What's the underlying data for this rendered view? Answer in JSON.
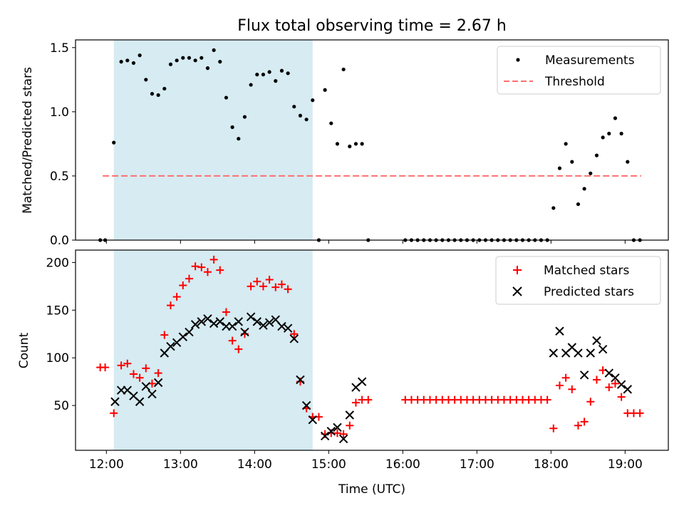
{
  "figure": {
    "title": "Flux total observing time = 2.67 h",
    "xlabel": "Time (UTC)"
  },
  "colors": {
    "shade": "#add8e6",
    "measurement": "#000000",
    "threshold": "#ff6f6f",
    "matched": "#ff0000",
    "predicted": "#000000"
  },
  "chart_data": [
    {
      "type": "scatter",
      "ylabel": "Matched/Predicted stars",
      "xlim": [
        "11:35",
        "19:35"
      ],
      "ylim": [
        0,
        1.56
      ],
      "yticks": [
        0.0,
        0.5,
        1.0,
        1.5
      ],
      "ytick_labels": [
        "0.0",
        "0.5",
        "1.0",
        "1.5"
      ],
      "xticks": [
        "12:00",
        "13:00",
        "14:00",
        "15:00",
        "16:00",
        "17:00",
        "18:00",
        "19:00"
      ],
      "shaded_span": [
        "12:06",
        "14:47"
      ],
      "legend": {
        "position": "upper right",
        "entries": [
          "Measurements",
          "Threshold"
        ]
      },
      "threshold": {
        "name": "Threshold",
        "value": 0.5,
        "x_range": [
          "11:57",
          "19:13"
        ]
      },
      "series": [
        {
          "name": "Measurements",
          "marker": "dot",
          "points": [
            [
              "11:55",
              0
            ],
            [
              "11:59",
              0
            ],
            [
              "12:06",
              0.76
            ],
            [
              "12:12",
              1.39
            ],
            [
              "12:17",
              1.4
            ],
            [
              "12:22",
              1.38
            ],
            [
              "12:27",
              1.44
            ],
            [
              "12:32",
              1.25
            ],
            [
              "12:37",
              1.14
            ],
            [
              "12:42",
              1.13
            ],
            [
              "12:47",
              1.18
            ],
            [
              "12:52",
              1.37
            ],
            [
              "12:57",
              1.4
            ],
            [
              "13:02",
              1.42
            ],
            [
              "13:07",
              1.42
            ],
            [
              "13:12",
              1.4
            ],
            [
              "13:17",
              1.42
            ],
            [
              "13:22",
              1.34
            ],
            [
              "13:27",
              1.48
            ],
            [
              "13:32",
              1.39
            ],
            [
              "13:37",
              1.11
            ],
            [
              "13:42",
              0.88
            ],
            [
              "13:47",
              0.79
            ],
            [
              "13:52",
              0.96
            ],
            [
              "13:57",
              1.21
            ],
            [
              "14:02",
              1.29
            ],
            [
              "14:07",
              1.29
            ],
            [
              "14:12",
              1.31
            ],
            [
              "14:17",
              1.24
            ],
            [
              "14:22",
              1.32
            ],
            [
              "14:27",
              1.3
            ],
            [
              "14:32",
              1.04
            ],
            [
              "14:37",
              0.97
            ],
            [
              "14:42",
              0.94
            ],
            [
              "14:47",
              1.09
            ],
            [
              "14:52",
              0
            ],
            [
              "14:57",
              1.17
            ],
            [
              "15:02",
              0.91
            ],
            [
              "15:07",
              0.75
            ],
            [
              "15:12",
              1.33
            ],
            [
              "15:17",
              0.73
            ],
            [
              "15:22",
              0.75
            ],
            [
              "15:27",
              0.75
            ],
            [
              "15:32",
              0
            ],
            [
              "16:02",
              0
            ],
            [
              "16:07",
              0
            ],
            [
              "16:12",
              0
            ],
            [
              "16:17",
              0
            ],
            [
              "16:22",
              0
            ],
            [
              "16:27",
              0
            ],
            [
              "16:32",
              0
            ],
            [
              "16:37",
              0
            ],
            [
              "16:42",
              0
            ],
            [
              "16:47",
              0
            ],
            [
              "16:52",
              0
            ],
            [
              "16:57",
              0
            ],
            [
              "17:02",
              0
            ],
            [
              "17:07",
              0
            ],
            [
              "17:12",
              0
            ],
            [
              "17:17",
              0
            ],
            [
              "17:22",
              0
            ],
            [
              "17:27",
              0
            ],
            [
              "17:32",
              0
            ],
            [
              "17:37",
              0
            ],
            [
              "17:42",
              0
            ],
            [
              "17:47",
              0
            ],
            [
              "17:52",
              0
            ],
            [
              "17:57",
              0
            ],
            [
              "18:02",
              0.25
            ],
            [
              "18:07",
              0.56
            ],
            [
              "18:12",
              0.75
            ],
            [
              "18:17",
              0.61
            ],
            [
              "18:22",
              0.28
            ],
            [
              "18:27",
              0.4
            ],
            [
              "18:32",
              0.52
            ],
            [
              "18:37",
              0.66
            ],
            [
              "18:42",
              0.8
            ],
            [
              "18:47",
              0.83
            ],
            [
              "18:52",
              0.95
            ],
            [
              "18:57",
              0.83
            ],
            [
              "19:02",
              0.61
            ],
            [
              "19:07",
              0
            ],
            [
              "19:12",
              0
            ]
          ]
        }
      ]
    },
    {
      "type": "scatter",
      "ylabel": "Count",
      "xlim": [
        "11:35",
        "19:35"
      ],
      "ylim": [
        3,
        213
      ],
      "yticks": [
        50,
        100,
        150,
        200
      ],
      "ytick_labels": [
        "50",
        "100",
        "150",
        "200"
      ],
      "xticks": [
        "12:00",
        "13:00",
        "14:00",
        "15:00",
        "16:00",
        "17:00",
        "18:00",
        "19:00"
      ],
      "xtick_labels": [
        "12:00",
        "13:00",
        "14:00",
        "15:00",
        "16:00",
        "17:00",
        "18:00",
        "19:00"
      ],
      "shaded_span": [
        "12:06",
        "14:47"
      ],
      "legend": {
        "position": "upper right",
        "entries": [
          "Matched stars",
          "Predicted stars"
        ]
      },
      "series": [
        {
          "name": "Matched stars",
          "marker": "plus",
          "points": [
            [
              "11:55",
              90
            ],
            [
              "11:59",
              90
            ],
            [
              "12:06",
              42
            ],
            [
              "12:12",
              92
            ],
            [
              "12:17",
              94
            ],
            [
              "12:22",
              83
            ],
            [
              "12:27",
              79
            ],
            [
              "12:32",
              89
            ],
            [
              "12:37",
              73
            ],
            [
              "12:42",
              84
            ],
            [
              "12:47",
              124
            ],
            [
              "12:52",
              155
            ],
            [
              "12:57",
              164
            ],
            [
              "13:02",
              176
            ],
            [
              "13:07",
              183
            ],
            [
              "13:12",
              196
            ],
            [
              "13:17",
              195
            ],
            [
              "13:22",
              190
            ],
            [
              "13:27",
              203
            ],
            [
              "13:32",
              192
            ],
            [
              "13:37",
              148
            ],
            [
              "13:42",
              118
            ],
            [
              "13:47",
              109
            ],
            [
              "13:52",
              125
            ],
            [
              "13:57",
              175
            ],
            [
              "14:02",
              180
            ],
            [
              "14:07",
              175
            ],
            [
              "14:12",
              182
            ],
            [
              "14:17",
              174
            ],
            [
              "14:22",
              177
            ],
            [
              "14:27",
              172
            ],
            [
              "14:32",
              125
            ],
            [
              "14:37",
              75
            ],
            [
              "14:42",
              47
            ],
            [
              "14:47",
              38
            ],
            [
              "14:52",
              38
            ],
            [
              "14:57",
              20
            ],
            [
              "15:02",
              21
            ],
            [
              "15:07",
              21
            ],
            [
              "15:12",
              20
            ],
            [
              "15:17",
              29
            ],
            [
              "15:22",
              53
            ],
            [
              "15:27",
              56
            ],
            [
              "15:32",
              56
            ],
            [
              "16:02",
              56
            ],
            [
              "16:07",
              56
            ],
            [
              "16:12",
              56
            ],
            [
              "16:17",
              56
            ],
            [
              "16:22",
              56
            ],
            [
              "16:27",
              56
            ],
            [
              "16:32",
              56
            ],
            [
              "16:37",
              56
            ],
            [
              "16:42",
              56
            ],
            [
              "16:47",
              56
            ],
            [
              "16:52",
              56
            ],
            [
              "16:57",
              56
            ],
            [
              "17:02",
              56
            ],
            [
              "17:07",
              56
            ],
            [
              "17:12",
              56
            ],
            [
              "17:17",
              56
            ],
            [
              "17:22",
              56
            ],
            [
              "17:27",
              56
            ],
            [
              "17:32",
              56
            ],
            [
              "17:37",
              56
            ],
            [
              "17:42",
              56
            ],
            [
              "17:47",
              56
            ],
            [
              "17:52",
              56
            ],
            [
              "17:57",
              56
            ],
            [
              "18:02",
              26
            ],
            [
              "18:07",
              71
            ],
            [
              "18:12",
              79
            ],
            [
              "18:17",
              67
            ],
            [
              "18:22",
              29
            ],
            [
              "18:27",
              33
            ],
            [
              "18:32",
              54
            ],
            [
              "18:37",
              77
            ],
            [
              "18:42",
              87
            ],
            [
              "18:47",
              69
            ],
            [
              "18:52",
              73
            ],
            [
              "18:57",
              59
            ],
            [
              "19:02",
              42
            ],
            [
              "19:07",
              42
            ],
            [
              "19:12",
              42
            ]
          ]
        },
        {
          "name": "Predicted stars",
          "marker": "x",
          "points": [
            [
              "12:07",
              54
            ],
            [
              "12:12",
              66
            ],
            [
              "12:17",
              66
            ],
            [
              "12:22",
              60
            ],
            [
              "12:27",
              54
            ],
            [
              "12:32",
              70
            ],
            [
              "12:37",
              62
            ],
            [
              "12:42",
              74
            ],
            [
              "12:47",
              105
            ],
            [
              "12:52",
              112
            ],
            [
              "12:57",
              116
            ],
            [
              "13:02",
              122
            ],
            [
              "13:07",
              127
            ],
            [
              "13:12",
              135
            ],
            [
              "13:17",
              138
            ],
            [
              "13:22",
              141
            ],
            [
              "13:27",
              136
            ],
            [
              "13:32",
              138
            ],
            [
              "13:37",
              133
            ],
            [
              "13:42",
              133
            ],
            [
              "13:47",
              138
            ],
            [
              "13:52",
              127
            ],
            [
              "13:57",
              143
            ],
            [
              "14:02",
              138
            ],
            [
              "14:07",
              134
            ],
            [
              "14:12",
              137
            ],
            [
              "14:17",
              140
            ],
            [
              "14:22",
              133
            ],
            [
              "14:27",
              131
            ],
            [
              "14:32",
              120
            ],
            [
              "14:37",
              77
            ],
            [
              "14:42",
              50
            ],
            [
              "14:47",
              35
            ],
            [
              "14:57",
              18
            ],
            [
              "15:02",
              23
            ],
            [
              "15:07",
              27
            ],
            [
              "15:12",
              15
            ],
            [
              "15:17",
              40
            ],
            [
              "15:22",
              69
            ],
            [
              "15:27",
              75
            ],
            [
              "18:02",
              105
            ],
            [
              "18:07",
              128
            ],
            [
              "18:12",
              105
            ],
            [
              "18:17",
              111
            ],
            [
              "18:22",
              105
            ],
            [
              "18:27",
              82
            ],
            [
              "18:32",
              105
            ],
            [
              "18:37",
              118
            ],
            [
              "18:42",
              109
            ],
            [
              "18:47",
              84
            ],
            [
              "18:52",
              79
            ],
            [
              "18:57",
              72
            ],
            [
              "19:02",
              67
            ]
          ]
        }
      ]
    }
  ]
}
